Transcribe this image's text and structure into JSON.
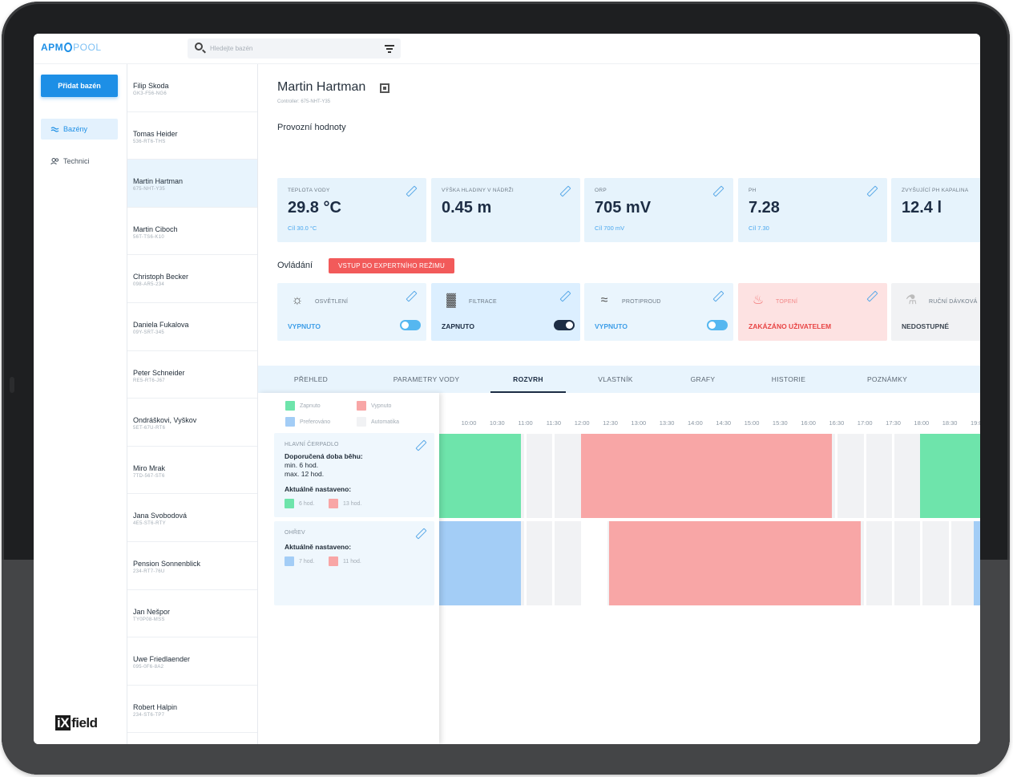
{
  "brand": {
    "logo_a": "APM",
    "logo_b": "POOL",
    "footer_logo_box": "iX",
    "footer_logo_text": "field"
  },
  "search": {
    "placeholder": "Hledejte bazén"
  },
  "nav": {
    "add_button": "Přidat bazén",
    "items": [
      {
        "label": "Bazény",
        "icon": "pool-icon",
        "active": true
      },
      {
        "label": "Technici",
        "icon": "users-icon",
        "active": false
      }
    ]
  },
  "clients": [
    {
      "name": "Filip Skoda",
      "code": "GK3-F56-NG6"
    },
    {
      "name": "Tomas Heider",
      "code": "536-RT6-THS"
    },
    {
      "name": "Martin Hartman",
      "code": "675-NHT-Y35"
    },
    {
      "name": "Martin Ciboch",
      "code": "56T-TS6-K10"
    },
    {
      "name": "Christoph Becker",
      "code": "098-AR5-234"
    },
    {
      "name": "Daniela Fukalova",
      "code": "09Y-SRT-345"
    },
    {
      "name": "Peter Schneider",
      "code": "RE5-RT6-J67"
    },
    {
      "name": "Ondráškovi, Vyškov",
      "code": "5ET-67U-RT6"
    },
    {
      "name": "Miro Mrak",
      "code": "7TD-567-ST6"
    },
    {
      "name": "Jana Svobodová",
      "code": "4E5-ST6-RTY"
    },
    {
      "name": "Pension Sonnenblick",
      "code": "234-RT7-76U"
    },
    {
      "name": "Jan Nešpor",
      "code": "TY0P08-MSS"
    },
    {
      "name": "Uwe Friedlaender",
      "code": "095-0F6-8A2"
    },
    {
      "name": "Robert Halpin",
      "code": "234-ST6-TP7"
    }
  ],
  "detail": {
    "title": "Martin Hartman",
    "controller": "Controller: 675-NHT-Y35",
    "values_heading": "Provozní hodnoty",
    "values": [
      {
        "label": "TEPLOTA VODY",
        "value": "29.8 °C",
        "target": "Cíl 30.0 °C"
      },
      {
        "label": "VÝŠKA HLADINY V NÁDRŽI",
        "value": "0.45 m",
        "target": ""
      },
      {
        "label": "ORP",
        "value": "705 mV",
        "target": "Cíl 700 mV"
      },
      {
        "label": "PH",
        "value": "7.28",
        "target": "Cíl 7.30"
      },
      {
        "label": "ZVYŠUJÍCÍ PH KAPALINA",
        "value": "12.4 l",
        "target": ""
      }
    ],
    "controls_heading": "Ovládání",
    "expert_button": "VSTUP DO EXPERTNÍHO REŽIMU",
    "controls": [
      {
        "label": "OSVĚTLENÍ",
        "state": "VYPNUTO",
        "icon": "lightbulb-icon",
        "toggle": "off"
      },
      {
        "label": "FILTRACE",
        "state": "ZAPNUTO",
        "icon": "filter-icon",
        "toggle": "on"
      },
      {
        "label": "PROTIPROUD",
        "state": "VYPNUTO",
        "icon": "counterflow-icon",
        "toggle": "off"
      },
      {
        "label": "TOPENÍ",
        "state": "ZAKÁZÁNO UŽIVATELEM",
        "icon": "heating-icon",
        "toggle": "none"
      },
      {
        "label": "RUČNÍ DÁVKOVÁ",
        "state": "NEDOSTUPNÉ",
        "icon": "dosing-icon",
        "toggle": "none"
      }
    ]
  },
  "tabs": [
    "PŘEHLED",
    "PARAMETRY VODY",
    "ROZVRH",
    "VLASTNÍK",
    "GRAFY",
    "HISTORIE",
    "POZNÁMKY"
  ],
  "active_tab": "ROZVRH",
  "schedule": {
    "legend": [
      {
        "label": "Zapnuto",
        "color": "#6ee4ab"
      },
      {
        "label": "Vypnuto",
        "color": "#f8a6a6"
      },
      {
        "label": "Preferováno",
        "color": "#a3cdf6"
      },
      {
        "label": "Automatika",
        "color": "#f1f2f4"
      }
    ],
    "pump": {
      "label": "HLAVNÍ ČERPADLO",
      "recommended": "Doporučená doba běhu:",
      "min": "min. 6 hod.",
      "max": "max. 12 hod.",
      "current": "Aktuálně nastaveno:",
      "on_hours": "6 hod.",
      "off_hours": "13 hod."
    },
    "heating": {
      "label": "OHŘEV",
      "current": "Aktuálně nastaveno:",
      "pref_hours": "7 hod.",
      "off_hours": "11 hod."
    },
    "times": [
      "10:00",
      "10:30",
      "11:00",
      "11:30",
      "12:00",
      "12:30",
      "13:00",
      "13:30",
      "14:00",
      "14:30",
      "15:00",
      "15:30",
      "16:00",
      "16:30",
      "17:00",
      "17:30",
      "18:00",
      "18:30",
      "19:00"
    ]
  }
}
